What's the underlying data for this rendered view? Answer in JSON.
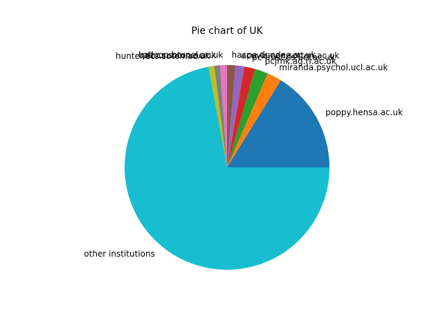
{
  "chart_data": {
    "type": "pie",
    "title": "Pie chart of UK",
    "start_angle_deg": 0,
    "direction": "counterclockwise",
    "slices": [
      {
        "label": "poppy.hensa.ac.uk",
        "value": 16.2,
        "color": "#1f77b4"
      },
      {
        "label": "miranda.psychol.ucl.ac.uk",
        "value": 2.3,
        "color": "#ff7f0e"
      },
      {
        "label": "pcjmk.ag.rl.ac.uk",
        "value": 2.1,
        "color": "#2ca02c"
      },
      {
        "label": "pc-frost.cs.ucl.ac.uk",
        "value": 1.7,
        "color": "#d62728"
      },
      {
        "label": "acuvic.cen.sotton.ac.uk",
        "value": 1.4,
        "color": "#9467bd"
      },
      {
        "label": "hacpe.dundee.ac.uk",
        "value": 1.3,
        "color": "#8c564b"
      },
      {
        "label": "balloon.brunel.ac.uk",
        "value": 1.1,
        "color": "#e377c2"
      },
      {
        "label": "ptt.cs.soton.ac.uk",
        "value": 0.9,
        "color": "#7f7f7f"
      },
      {
        "label": "hunter.ecs.soton.ac.uk",
        "value": 0.9,
        "color": "#bcbd22"
      },
      {
        "label": "other institutions",
        "value": 72.1,
        "color": "#17becf"
      }
    ]
  }
}
